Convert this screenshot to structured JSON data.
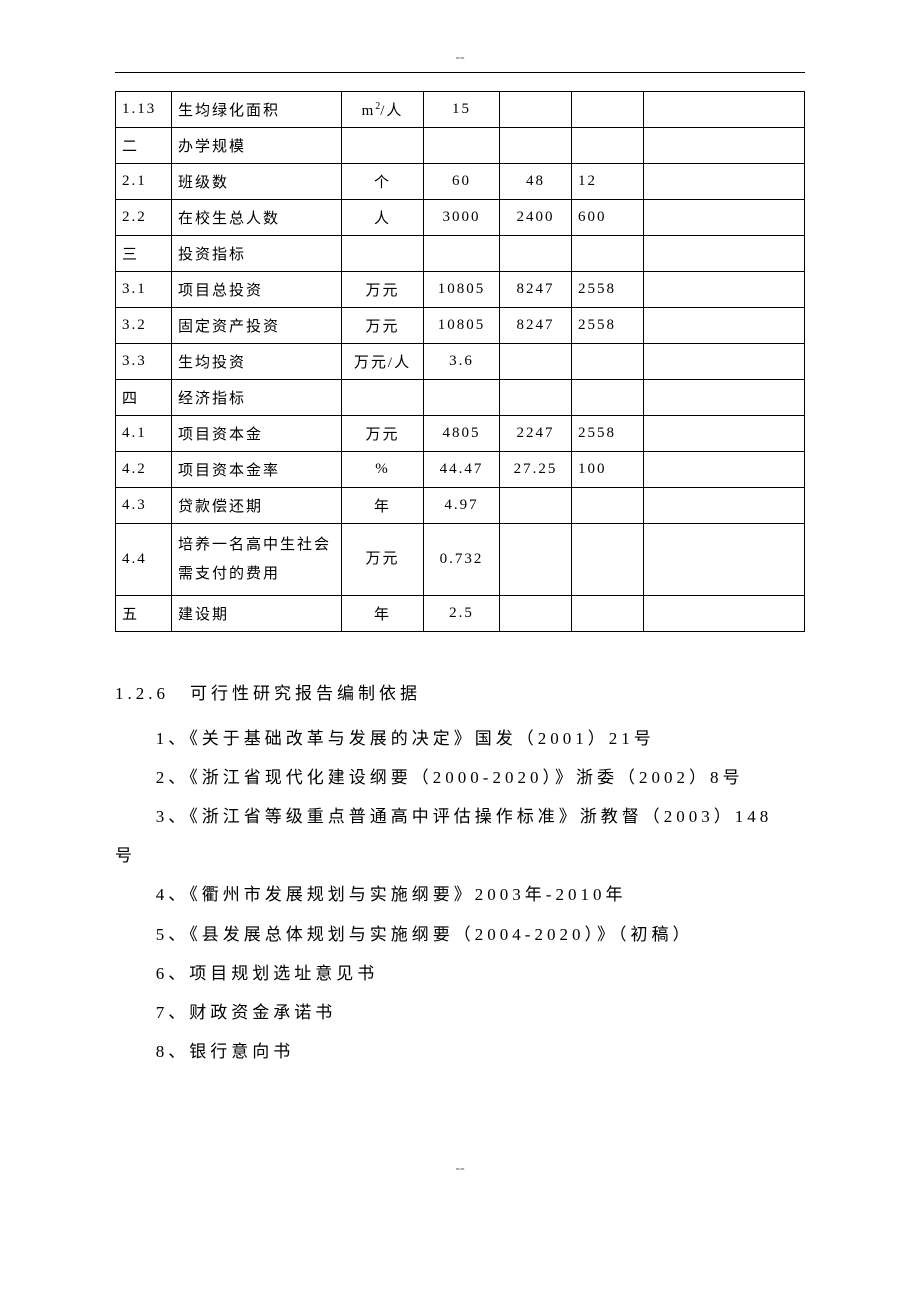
{
  "header_dash": "--",
  "footer_dash": "--",
  "table": {
    "rows": [
      {
        "idx": "1.13",
        "name": "生均绿化面积",
        "unit": "m²/人",
        "v1": "15",
        "v2": "",
        "v3": "",
        "v4": ""
      },
      {
        "idx": "二",
        "name": "办学规模",
        "unit": "",
        "v1": "",
        "v2": "",
        "v3": "",
        "v4": ""
      },
      {
        "idx": "2.1",
        "name": "班级数",
        "unit": "个",
        "v1": "60",
        "v2": "48",
        "v3": "12",
        "v4": ""
      },
      {
        "idx": "2.2",
        "name": "在校生总人数",
        "unit": "人",
        "v1": "3000",
        "v2": "2400",
        "v3": "600",
        "v4": ""
      },
      {
        "idx": "三",
        "name": "投资指标",
        "unit": "",
        "v1": "",
        "v2": "",
        "v3": "",
        "v4": ""
      },
      {
        "idx": "3.1",
        "name": "项目总投资",
        "unit": "万元",
        "v1": "10805",
        "v2": "8247",
        "v3": "2558",
        "v4": ""
      },
      {
        "idx": "3.2",
        "name": "固定资产投资",
        "unit": "万元",
        "v1": "10805",
        "v2": "8247",
        "v3": "2558",
        "v4": ""
      },
      {
        "idx": "3.3",
        "name": "生均投资",
        "unit": "万元/人",
        "v1": "3.6",
        "v2": "",
        "v3": "",
        "v4": ""
      },
      {
        "idx": "四",
        "name": "经济指标",
        "unit": "",
        "v1": "",
        "v2": "",
        "v3": "",
        "v4": ""
      },
      {
        "idx": "4.1",
        "name": "项目资本金",
        "unit": "万元",
        "v1": "4805",
        "v2": "2247",
        "v3": "2558",
        "v4": ""
      },
      {
        "idx": "4.2",
        "name": "项目资本金率",
        "unit": "%",
        "v1": "44.47",
        "v2": "27.25",
        "v3": "100",
        "v4": ""
      },
      {
        "idx": "4.3",
        "name": "贷款偿还期",
        "unit": "年",
        "v1": "4.97",
        "v2": "",
        "v3": "",
        "v4": ""
      },
      {
        "idx": "4.4",
        "name": "培养一名高中生社会需支付的费用",
        "unit": "万元",
        "v1": "0.732",
        "v2": "",
        "v3": "",
        "v4": "",
        "tall": true
      },
      {
        "idx": "五",
        "name": "建设期",
        "unit": "年",
        "v1": "2.5",
        "v2": "",
        "v3": "",
        "v4": ""
      }
    ]
  },
  "section_title": "1.2.6　可行性研究报告编制依据",
  "paragraphs": [
    {
      "text": "1、《关于基础改革与发展的决定》国发（2001）21号",
      "indent": true
    },
    {
      "text": "2、《浙江省现代化建设纲要（2000-2020）》浙委（2002）8号",
      "indent": true
    },
    {
      "text": "3、《浙江省等级重点普通高中评估操作标准》浙教督（2003）148",
      "indent": true
    },
    {
      "text": "号",
      "indent": false
    },
    {
      "text": "4、《衢州市发展规划与实施纲要》2003年-2010年",
      "indent": true
    },
    {
      "text": "5、《县发展总体规划与实施纲要（2004-2020）》（初稿）",
      "indent": true
    },
    {
      "text": "6、项目规划选址意见书",
      "indent": true
    },
    {
      "text": "7、财政资金承诺书",
      "indent": true
    },
    {
      "text": "8、银行意向书",
      "indent": true
    }
  ]
}
